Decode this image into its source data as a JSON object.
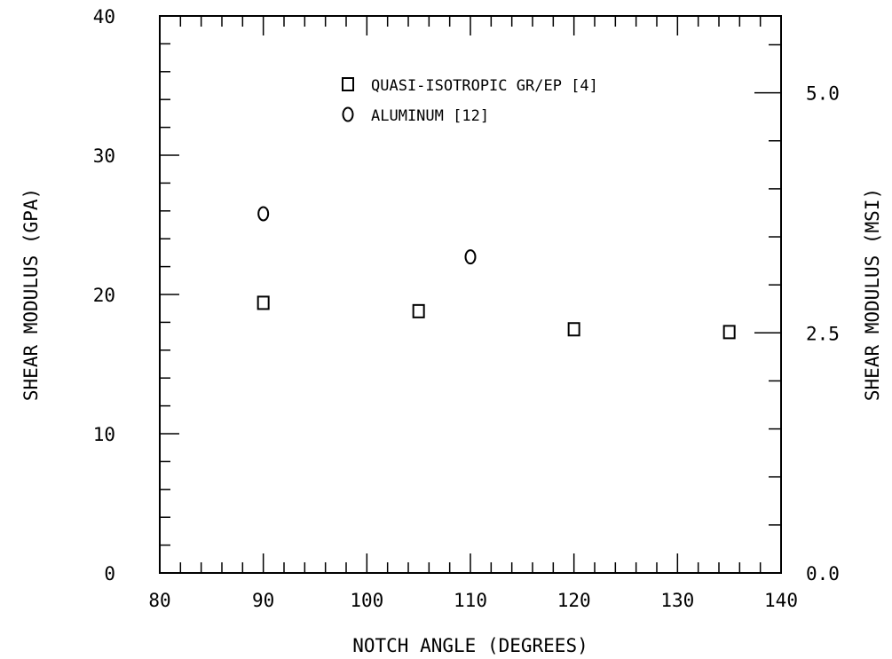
{
  "chart_data": {
    "type": "scatter",
    "xlabel": "NOTCH ANGLE (DEGREES)",
    "ylabel": "SHEAR MODULUS (GPA)",
    "y2label": "SHEAR MODULUS (MSI)",
    "xlim": [
      80,
      140
    ],
    "ylim": [
      0,
      40
    ],
    "y2lim": [
      0.0,
      5.8
    ],
    "xticks": [
      "80",
      "90",
      "100",
      "110",
      "120",
      "130",
      "140"
    ],
    "yticks": [
      "0",
      "10",
      "20",
      "30",
      "40"
    ],
    "y2ticks": [
      "0.0",
      "2.5",
      "5.0"
    ],
    "grid": false,
    "legend_position": "top-center",
    "series": [
      {
        "name": "QUASI-ISOTROPIC GR/EP [4]",
        "marker": "square",
        "x": [
          90,
          105,
          120,
          135
        ],
        "y": [
          19.4,
          18.8,
          17.5,
          17.3
        ]
      },
      {
        "name": "ALUMINUM [12]",
        "marker": "circle",
        "x": [
          90,
          110
        ],
        "y": [
          25.8,
          22.7
        ]
      }
    ]
  }
}
